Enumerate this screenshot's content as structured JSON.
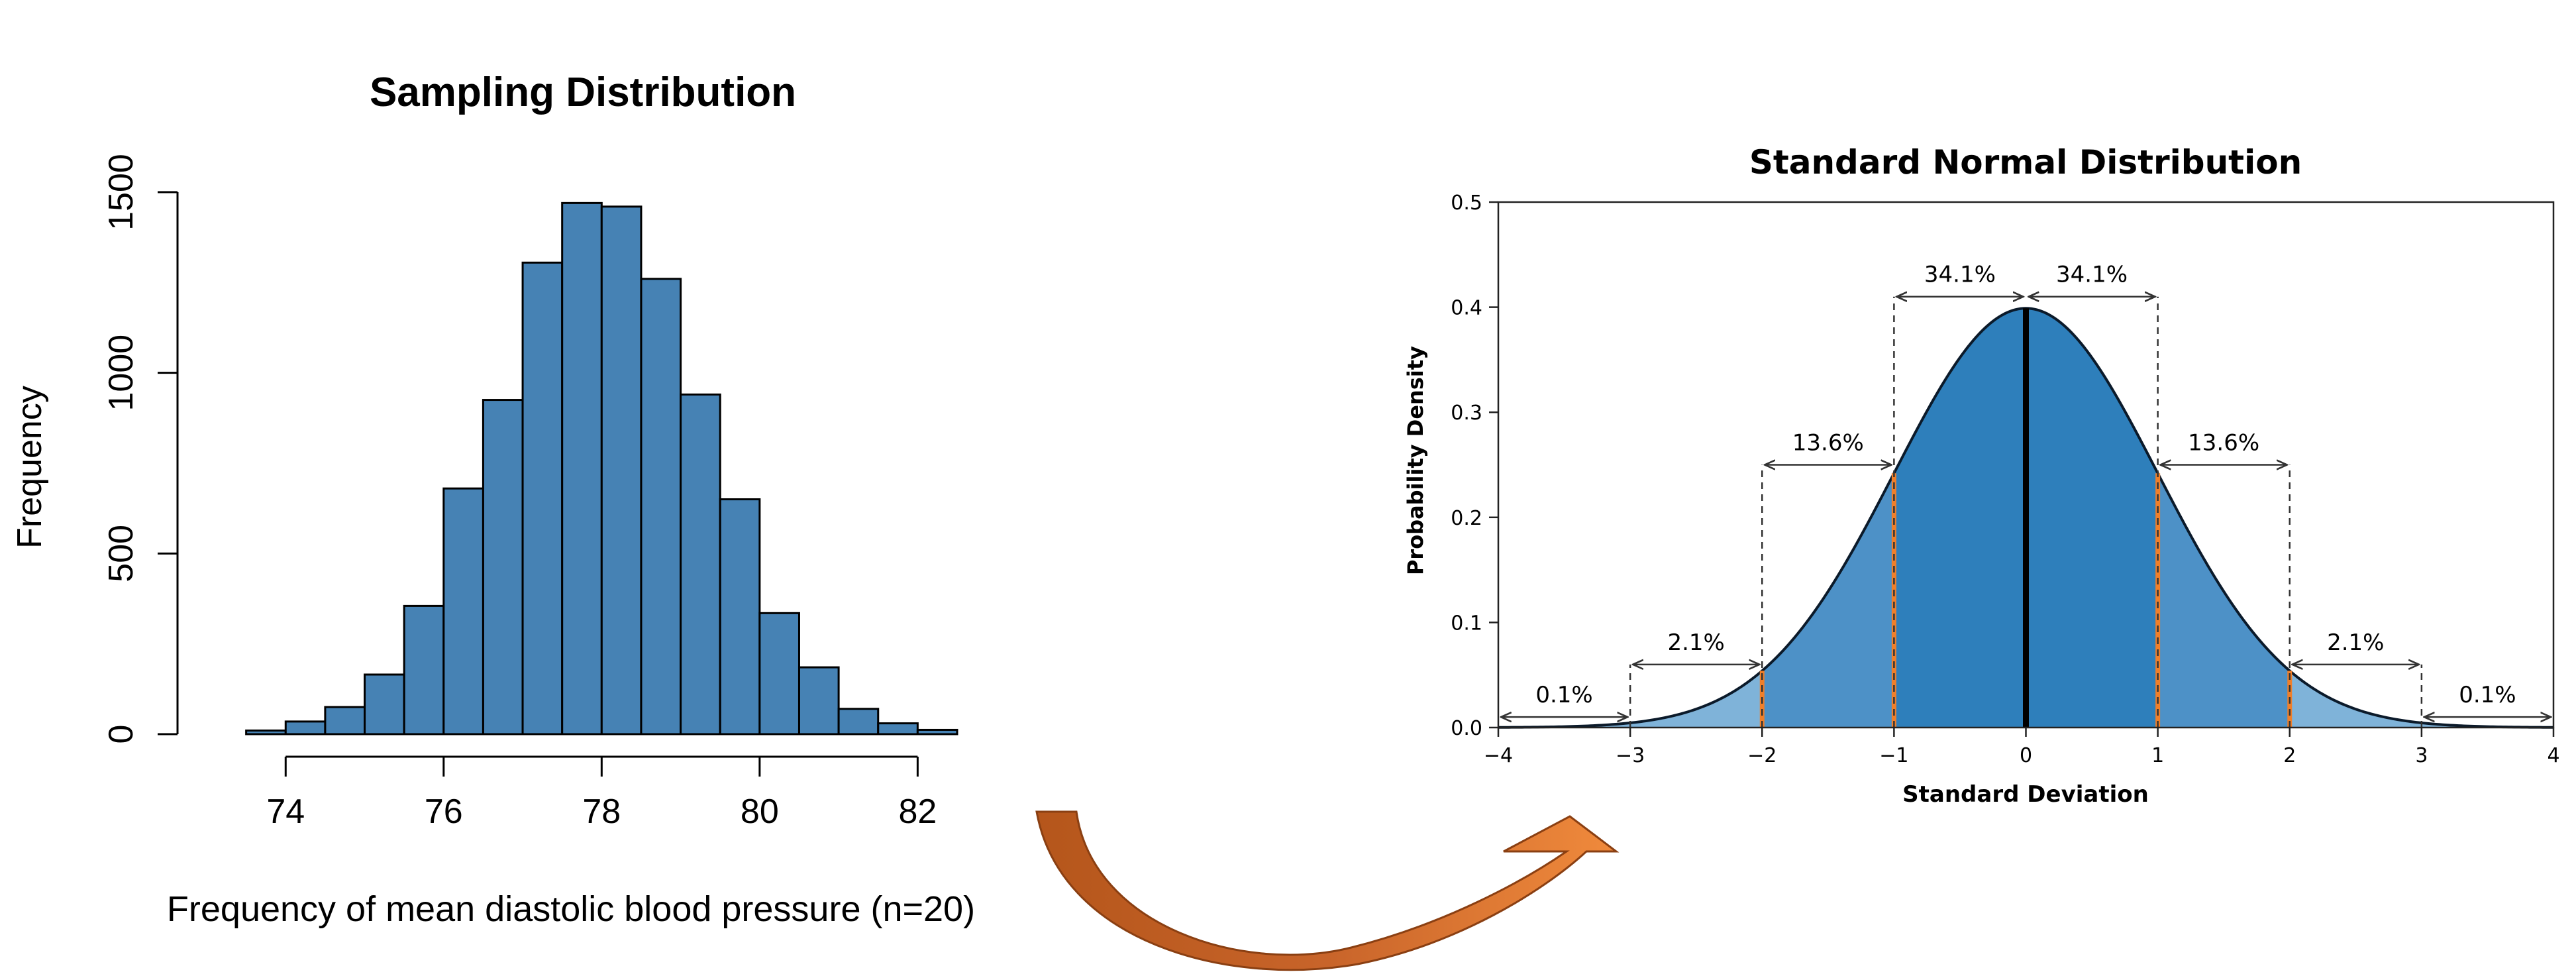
{
  "colors": {
    "hist_bar": "#4682b4",
    "norm_center": "#2e7fbb",
    "norm_mid": "#4d91c7",
    "norm_tail": "#7fb3d9",
    "norm_sd_marker": "#f07f2a",
    "arrow_light": "#f08a3c",
    "arrow_dark": "#b5561b"
  },
  "chart_data": [
    {
      "type": "bar",
      "title": "Sampling Distribution",
      "xlabel": "Frequency of mean diastolic blood pressure (n=20)",
      "ylabel": "Frequency",
      "bin_width": 0.5,
      "bin_starts": [
        73.5,
        74,
        74.5,
        75,
        75.5,
        76,
        76.5,
        77,
        77.5,
        78,
        78.5,
        79,
        79.5,
        80,
        80.5,
        81,
        81.5,
        82
      ],
      "values": [
        10,
        35,
        75,
        165,
        355,
        680,
        925,
        1305,
        1470,
        1460,
        1260,
        940,
        650,
        335,
        185,
        70,
        30,
        12
      ],
      "xticks": [
        "74",
        "76",
        "78",
        "80",
        "82"
      ],
      "yticks": [
        "0",
        "500",
        "1000",
        "1500"
      ],
      "xlim": [
        73,
        82.5
      ],
      "ylim": [
        0,
        1500
      ]
    },
    {
      "type": "area",
      "title": "Standard Normal Distribution",
      "xlabel": "Standard Deviation",
      "ylabel": "Probability Density",
      "x_range": [
        -4,
        4
      ],
      "xticks": [
        "−4",
        "−3",
        "−2",
        "−1",
        "0",
        "1",
        "2",
        "3",
        "4"
      ],
      "yticks": [
        "0.0",
        "0.1",
        "0.2",
        "0.3",
        "0.4",
        "0.5"
      ],
      "ylim": [
        0,
        0.5
      ],
      "sd_markers": [
        -2,
        -1,
        1,
        2
      ],
      "center_line": 0,
      "intervals": [
        {
          "label": "0.1%",
          "from": -4,
          "to": -3
        },
        {
          "label": "2.1%",
          "from": -3,
          "to": -2
        },
        {
          "label": "13.6%",
          "from": -2,
          "to": -1
        },
        {
          "label": "34.1%",
          "from": -1,
          "to": 0
        },
        {
          "label": "34.1%",
          "from": 0,
          "to": 1
        },
        {
          "label": "13.6%",
          "from": 1,
          "to": 2
        },
        {
          "label": "2.1%",
          "from": 2,
          "to": 3
        },
        {
          "label": "0.1%",
          "from": 3,
          "to": 4
        }
      ]
    }
  ]
}
